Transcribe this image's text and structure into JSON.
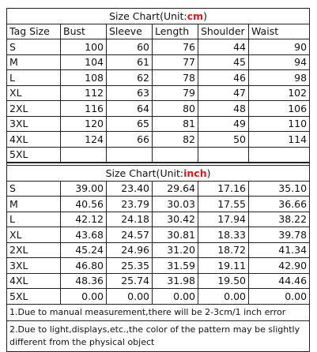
{
  "cm_chart": {
    "title_prefix": "Size Chart(Unit:",
    "unit": "cm",
    "title_suffix": ")",
    "headers": [
      "Tag Size",
      "Bust",
      "Sleeve",
      "Length",
      "Shoulder",
      "Waist"
    ],
    "rows": [
      [
        "S",
        "100",
        "60",
        "76",
        "44",
        "90"
      ],
      [
        "M",
        "104",
        "61",
        "77",
        "45",
        "94"
      ],
      [
        "L",
        "108",
        "62",
        "78",
        "46",
        "98"
      ],
      [
        "XL",
        "112",
        "63",
        "79",
        "47",
        "102"
      ],
      [
        "2XL",
        "116",
        "64",
        "80",
        "48",
        "106"
      ],
      [
        "3XL",
        "120",
        "65",
        "81",
        "49",
        "110"
      ],
      [
        "4XL",
        "124",
        "66",
        "82",
        "50",
        "114"
      ],
      [
        "5XL",
        "",
        "",
        "",
        "",
        ""
      ]
    ]
  },
  "inch_chart": {
    "title_prefix": "Size Chart(Unit:",
    "unit": "inch",
    "title_suffix": ")",
    "rows": [
      [
        "S",
        "39.00",
        "23.40",
        "29.64",
        "17.16",
        "35.10"
      ],
      [
        "M",
        "40.56",
        "23.79",
        "30.03",
        "17.55",
        "36.66"
      ],
      [
        "L",
        "42.12",
        "24.18",
        "30.42",
        "17.94",
        "38.22"
      ],
      [
        "XL",
        "43.68",
        "24.57",
        "30.81",
        "18.33",
        "39.78"
      ],
      [
        "2XL",
        "45.24",
        "24.96",
        "31.20",
        "18.72",
        "41.34"
      ],
      [
        "3XL",
        "46.80",
        "25.35",
        "31.59",
        "19.11",
        "42.90"
      ],
      [
        "4XL",
        "48.36",
        "25.74",
        "31.98",
        "19.50",
        "44.46"
      ],
      [
        "5XL",
        "0.00",
        "0.00",
        "0.00",
        "0.00",
        "0.00"
      ]
    ]
  },
  "notes": [
    "1.Due to manual measurement,there will be 2-3cm/1 inch error",
    "2.Due to light,displays,etc.,the color of the pattern may be slightly different from the physical object"
  ],
  "colors": {
    "unit_accent": "#e5161b",
    "border": "#222222"
  }
}
